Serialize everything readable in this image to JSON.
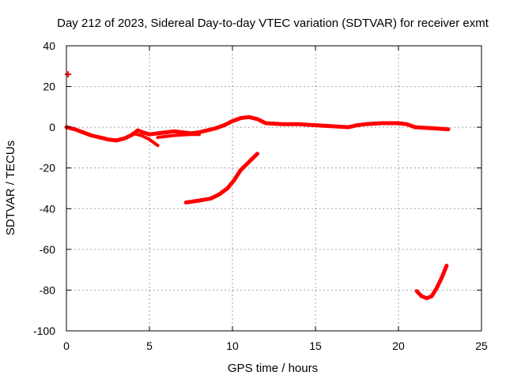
{
  "chart_data": {
    "type": "scatter",
    "title": "Day 212 of 2023, Sidereal Day-to-day VTEC variation (SDTVAR) for receiver exmt",
    "xlabel": "GPS time / hours",
    "ylabel": "SDTVAR / TECUs",
    "xlim": [
      0,
      25
    ],
    "ylim": [
      -100,
      40
    ],
    "xticks": [
      0,
      5,
      10,
      15,
      20,
      25
    ],
    "yticks": [
      -100,
      -80,
      -60,
      -40,
      -20,
      0,
      20,
      40
    ],
    "xtick_labels": [
      "0",
      "5",
      "10",
      "15",
      "20",
      "25"
    ],
    "ytick_labels": [
      "-100",
      "-80",
      "-60",
      "-40",
      "-20",
      "0",
      "20",
      "40"
    ],
    "grid": true,
    "color": "#ff0000",
    "marker": "plus",
    "series": [
      {
        "name": "main",
        "points": [
          [
            0,
            0
          ],
          [
            0.5,
            -1
          ],
          [
            1,
            -2.5
          ],
          [
            1.5,
            -4
          ],
          [
            2,
            -5
          ],
          [
            2.5,
            -6
          ],
          [
            3,
            -6.5
          ],
          [
            3.5,
            -5.5
          ],
          [
            4,
            -3.5
          ],
          [
            4.3,
            -1.5
          ],
          [
            4.6,
            -2.5
          ],
          [
            5,
            -3.5
          ],
          [
            5.5,
            -3
          ],
          [
            6,
            -2.5
          ],
          [
            6.5,
            -2
          ],
          [
            7,
            -2.5
          ],
          [
            7.5,
            -3
          ],
          [
            8,
            -2.5
          ],
          [
            8.5,
            -1.5
          ],
          [
            9,
            -0.5
          ],
          [
            9.5,
            1
          ],
          [
            10,
            3
          ],
          [
            10.5,
            4.5
          ],
          [
            11,
            5
          ],
          [
            11.5,
            4
          ],
          [
            12,
            2
          ],
          [
            13,
            1.5
          ],
          [
            14,
            1.5
          ],
          [
            15,
            1
          ],
          [
            16,
            0.5
          ],
          [
            17,
            0
          ],
          [
            17.5,
            1
          ],
          [
            18,
            1.5
          ],
          [
            19,
            2
          ],
          [
            20,
            2
          ],
          [
            20.5,
            1.5
          ],
          [
            21,
            0
          ],
          [
            22,
            -0.5
          ],
          [
            23,
            -1
          ]
        ],
        "width": 5
      },
      {
        "name": "lower-branch",
        "points": [
          [
            4,
            -3
          ],
          [
            4.5,
            -4
          ],
          [
            5,
            -6
          ],
          [
            5.5,
            -9
          ]
        ],
        "width": 4
      },
      {
        "name": "lower-band",
        "points": [
          [
            5.5,
            -5
          ],
          [
            6.5,
            -4
          ],
          [
            7.5,
            -3.5
          ],
          [
            8,
            -3.5
          ]
        ],
        "width": 4
      },
      {
        "name": "middle-arc",
        "points": [
          [
            7.2,
            -37
          ],
          [
            8,
            -36
          ],
          [
            8.7,
            -35
          ],
          [
            9.2,
            -33
          ],
          [
            9.7,
            -30
          ],
          [
            10.1,
            -26
          ],
          [
            10.5,
            -21
          ],
          [
            11,
            -17
          ],
          [
            11.5,
            -13
          ]
        ],
        "width": 5
      },
      {
        "name": "bottom-arc",
        "points": [
          [
            21.1,
            -80.5
          ],
          [
            21.4,
            -83
          ],
          [
            21.7,
            -84
          ],
          [
            22,
            -83
          ],
          [
            22.3,
            -79
          ],
          [
            22.6,
            -74
          ],
          [
            22.9,
            -68
          ]
        ],
        "width": 5
      },
      {
        "name": "outlier",
        "points": [
          [
            0.1,
            26
          ]
        ],
        "width": 2
      }
    ]
  }
}
